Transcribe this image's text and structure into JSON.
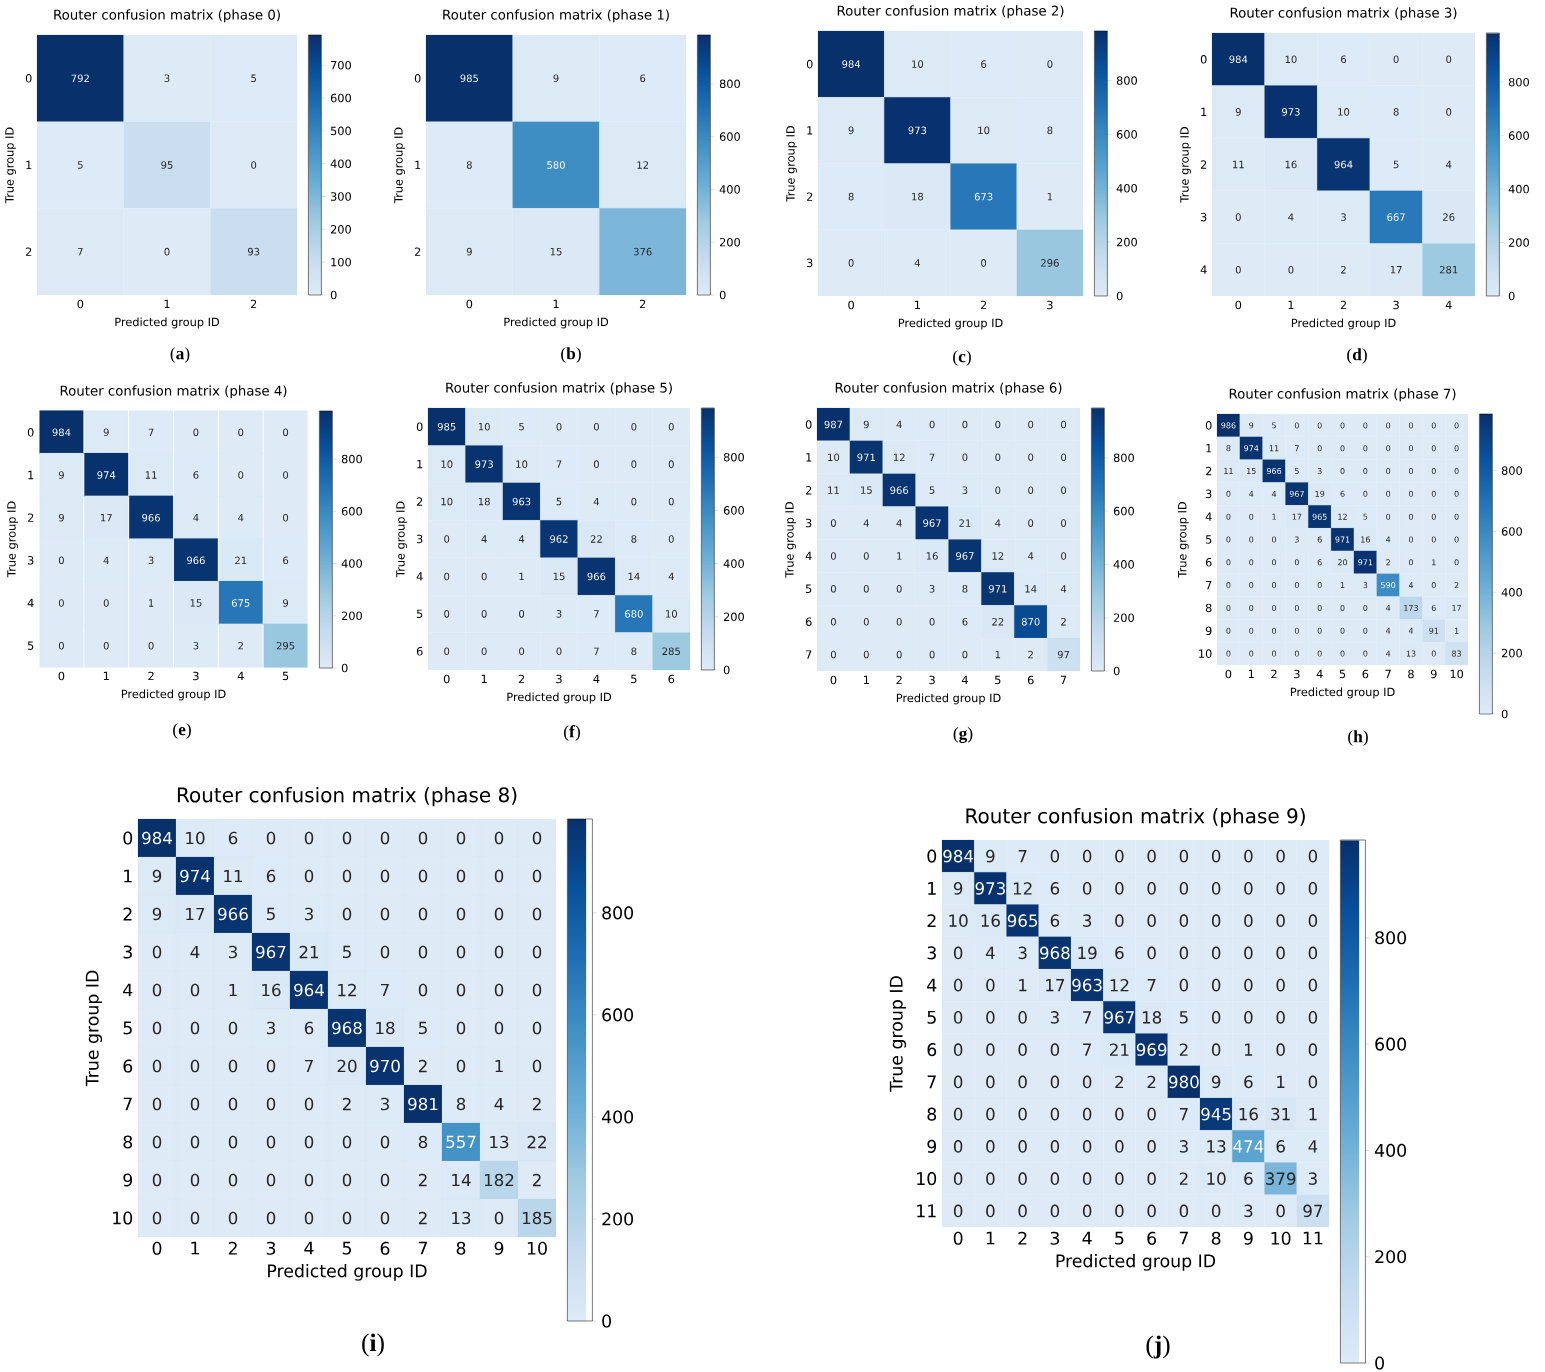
{
  "chart_data": [
    {
      "type": "heatmap",
      "title": "Router confusion matrix (phase 0)",
      "xlabel": "Predicted group ID",
      "ylabel": "True group ID",
      "categories": [
        "0",
        "1",
        "2"
      ],
      "y_categories": [
        "0",
        "1",
        "2"
      ],
      "cells": [
        [
          792,
          3,
          5
        ],
        [
          5,
          95,
          0
        ],
        [
          7,
          0,
          93
        ]
      ],
      "clim": [
        0,
        792
      ],
      "cticks": [
        0,
        100,
        200,
        300,
        400,
        500,
        600,
        700
      ],
      "data_labels": true,
      "annotations": [
        "(**a**)"
      ]
    },
    {
      "type": "heatmap",
      "title": "Router confusion matrix (phase 1)",
      "xlabel": "Predicted group ID",
      "ylabel": "True group ID",
      "categories": [
        "0",
        "1",
        "2"
      ],
      "y_categories": [
        "0",
        "1",
        "2"
      ],
      "cells": [
        [
          985,
          9,
          6
        ],
        [
          8,
          580,
          12
        ],
        [
          9,
          15,
          376
        ]
      ],
      "clim": [
        0,
        985
      ],
      "cticks": [
        0,
        200,
        400,
        600,
        800
      ],
      "data_labels": true,
      "annotations": [
        "(**b**)"
      ]
    },
    {
      "type": "heatmap",
      "title": "Router confusion matrix (phase 2)",
      "xlabel": "Predicted group ID",
      "ylabel": "True group ID",
      "categories": [
        "0",
        "1",
        "2",
        "3"
      ],
      "y_categories": [
        "0",
        "1",
        "2",
        "3"
      ],
      "cells": [
        [
          984,
          10,
          6,
          0
        ],
        [
          9,
          973,
          10,
          8
        ],
        [
          8,
          18,
          673,
          1
        ],
        [
          0,
          4,
          0,
          296
        ]
      ],
      "clim": [
        0,
        984
      ],
      "cticks": [
        0,
        200,
        400,
        600,
        800
      ],
      "data_labels": true,
      "annotations": [
        "(**c**)"
      ]
    },
    {
      "type": "heatmap",
      "title": "Router confusion matrix (phase 3)",
      "xlabel": "Predicted group ID",
      "ylabel": "True group ID",
      "categories": [
        "0",
        "1",
        "2",
        "3",
        "4"
      ],
      "y_categories": [
        "0",
        "1",
        "2",
        "3",
        "4"
      ],
      "cells": [
        [
          984,
          10,
          6,
          0,
          0
        ],
        [
          9,
          973,
          10,
          8,
          0
        ],
        [
          11,
          16,
          964,
          5,
          4
        ],
        [
          0,
          4,
          3,
          667,
          26
        ],
        [
          0,
          0,
          2,
          17,
          281
        ]
      ],
      "clim": [
        0,
        984
      ],
      "cticks": [
        0,
        200,
        400,
        600,
        800
      ],
      "data_labels": true,
      "annotations": [
        "(**d**)"
      ]
    },
    {
      "type": "heatmap",
      "title": "Router confusion matrix (phase 4)",
      "xlabel": "Predicted group ID",
      "ylabel": "True group ID",
      "categories": [
        "0",
        "1",
        "2",
        "3",
        "4",
        "5"
      ],
      "y_categories": [
        "0",
        "1",
        "2",
        "3",
        "4",
        "5"
      ],
      "cells": [
        [
          984,
          9,
          7,
          0,
          0,
          0
        ],
        [
          9,
          974,
          11,
          6,
          0,
          0
        ],
        [
          9,
          17,
          966,
          4,
          4,
          0
        ],
        [
          0,
          4,
          3,
          966,
          21,
          6
        ],
        [
          0,
          0,
          1,
          15,
          675,
          9
        ],
        [
          0,
          0,
          0,
          3,
          2,
          295
        ]
      ],
      "clim": [
        0,
        984
      ],
      "cticks": [
        0,
        200,
        400,
        600,
        800
      ],
      "data_labels": true,
      "annotations": [
        "(**e**)"
      ]
    },
    {
      "type": "heatmap",
      "title": "Router confusion matrix (phase 5)",
      "xlabel": "Predicted group ID",
      "ylabel": "True group ID",
      "categories": [
        "0",
        "1",
        "2",
        "3",
        "4",
        "5",
        "6"
      ],
      "y_categories": [
        "0",
        "1",
        "2",
        "3",
        "4",
        "5",
        "6"
      ],
      "cells": [
        [
          985,
          10,
          5,
          0,
          0,
          0,
          0
        ],
        [
          10,
          973,
          10,
          7,
          0,
          0,
          0
        ],
        [
          10,
          18,
          963,
          5,
          4,
          0,
          0
        ],
        [
          0,
          4,
          4,
          962,
          22,
          8,
          0
        ],
        [
          0,
          0,
          1,
          15,
          966,
          14,
          4
        ],
        [
          0,
          0,
          0,
          3,
          7,
          680,
          10
        ],
        [
          0,
          0,
          0,
          0,
          7,
          8,
          285
        ]
      ],
      "clim": [
        0,
        985
      ],
      "cticks": [
        0,
        200,
        400,
        600,
        800
      ],
      "data_labels": true,
      "annotations": [
        "(**f**)"
      ]
    },
    {
      "type": "heatmap",
      "title": "Router confusion matrix (phase 6)",
      "xlabel": "Predicted group ID",
      "ylabel": "True group ID",
      "categories": [
        "0",
        "1",
        "2",
        "3",
        "4",
        "5",
        "6",
        "7"
      ],
      "y_categories": [
        "0",
        "1",
        "2",
        "3",
        "4",
        "5",
        "6",
        "7"
      ],
      "cells": [
        [
          987,
          9,
          4,
          0,
          0,
          0,
          0,
          0
        ],
        [
          10,
          971,
          12,
          7,
          0,
          0,
          0,
          0
        ],
        [
          11,
          15,
          966,
          5,
          3,
          0,
          0,
          0
        ],
        [
          0,
          4,
          4,
          967,
          21,
          4,
          0,
          0
        ],
        [
          0,
          0,
          1,
          16,
          967,
          12,
          4,
          0
        ],
        [
          0,
          0,
          0,
          3,
          8,
          971,
          14,
          4
        ],
        [
          0,
          0,
          0,
          0,
          6,
          22,
          870,
          2
        ],
        [
          0,
          0,
          0,
          0,
          0,
          1,
          2,
          97
        ]
      ],
      "clim": [
        0,
        987
      ],
      "cticks": [
        0,
        200,
        400,
        600,
        800
      ],
      "data_labels": true,
      "annotations": [
        "(**g**)"
      ]
    },
    {
      "type": "heatmap",
      "title": "Router confusion matrix (phase 7)",
      "xlabel": "Predicted group ID",
      "ylabel": "True group ID",
      "categories": [
        "0",
        "1",
        "2",
        "3",
        "4",
        "5",
        "6",
        "7",
        "8",
        "9",
        "10"
      ],
      "y_categories": [
        "0",
        "1",
        "2",
        "3",
        "4",
        "5",
        "6",
        "7",
        "8",
        "9",
        "10"
      ],
      "cells": [
        [
          986,
          9,
          5,
          0,
          0,
          0,
          0,
          0,
          0,
          0,
          0
        ],
        [
          8,
          974,
          11,
          7,
          0,
          0,
          0,
          0,
          0,
          0,
          0
        ],
        [
          11,
          15,
          966,
          5,
          3,
          0,
          0,
          0,
          0,
          0,
          0
        ],
        [
          0,
          4,
          4,
          967,
          19,
          6,
          0,
          0,
          0,
          0,
          0
        ],
        [
          0,
          0,
          1,
          17,
          965,
          12,
          5,
          0,
          0,
          0,
          0
        ],
        [
          0,
          0,
          0,
          3,
          6,
          971,
          16,
          4,
          0,
          0,
          0
        ],
        [
          0,
          0,
          0,
          0,
          6,
          20,
          971,
          2,
          0,
          1,
          0
        ],
        [
          0,
          0,
          0,
          0,
          0,
          1,
          3,
          590,
          4,
          0,
          2
        ],
        [
          0,
          0,
          0,
          0,
          0,
          0,
          0,
          4,
          173,
          6,
          17
        ],
        [
          0,
          0,
          0,
          0,
          0,
          0,
          0,
          4,
          4,
          91,
          1
        ],
        [
          0,
          0,
          0,
          0,
          0,
          0,
          0,
          4,
          13,
          0,
          83
        ]
      ],
      "clim": [
        0,
        986
      ],
      "cticks": [
        0,
        200,
        400,
        600,
        800
      ],
      "data_labels": true,
      "annotations": [
        "(**h**)"
      ]
    },
    {
      "type": "heatmap",
      "title": "Router confusion matrix (phase 8)",
      "xlabel": "Predicted group ID",
      "ylabel": "True group ID",
      "categories": [
        "0",
        "1",
        "2",
        "3",
        "4",
        "5",
        "6",
        "7",
        "8",
        "9",
        "10"
      ],
      "y_categories": [
        "0",
        "1",
        "2",
        "3",
        "4",
        "5",
        "6",
        "7",
        "8",
        "9",
        "10"
      ],
      "cells": [
        [
          984,
          10,
          6,
          0,
          0,
          0,
          0,
          0,
          0,
          0,
          0
        ],
        [
          9,
          974,
          11,
          6,
          0,
          0,
          0,
          0,
          0,
          0,
          0
        ],
        [
          9,
          17,
          966,
          5,
          3,
          0,
          0,
          0,
          0,
          0,
          0
        ],
        [
          0,
          4,
          3,
          967,
          21,
          5,
          0,
          0,
          0,
          0,
          0
        ],
        [
          0,
          0,
          1,
          16,
          964,
          12,
          7,
          0,
          0,
          0,
          0
        ],
        [
          0,
          0,
          0,
          3,
          6,
          968,
          18,
          5,
          0,
          0,
          0
        ],
        [
          0,
          0,
          0,
          0,
          7,
          20,
          970,
          2,
          0,
          1,
          0
        ],
        [
          0,
          0,
          0,
          0,
          0,
          2,
          3,
          981,
          8,
          4,
          2
        ],
        [
          0,
          0,
          0,
          0,
          0,
          0,
          0,
          8,
          557,
          13,
          22
        ],
        [
          0,
          0,
          0,
          0,
          0,
          0,
          0,
          2,
          14,
          182,
          2
        ],
        [
          0,
          0,
          0,
          0,
          0,
          0,
          0,
          2,
          13,
          0,
          185
        ]
      ],
      "clim": [
        0,
        984
      ],
      "cticks": [
        0,
        200,
        400,
        600,
        800
      ],
      "data_labels": true,
      "annotations": [
        "(**i**)"
      ]
    },
    {
      "type": "heatmap",
      "title": "Router confusion matrix (phase 9)",
      "xlabel": "Predicted group ID",
      "ylabel": "True group ID",
      "categories": [
        "0",
        "1",
        "2",
        "3",
        "4",
        "5",
        "6",
        "7",
        "8",
        "9",
        "10",
        "11"
      ],
      "y_categories": [
        "0",
        "1",
        "2",
        "3",
        "4",
        "5",
        "6",
        "7",
        "8",
        "9",
        "10",
        "11"
      ],
      "cells": [
        [
          984,
          9,
          7,
          0,
          0,
          0,
          0,
          0,
          0,
          0,
          0,
          0
        ],
        [
          9,
          973,
          12,
          6,
          0,
          0,
          0,
          0,
          0,
          0,
          0,
          0
        ],
        [
          10,
          16,
          965,
          6,
          3,
          0,
          0,
          0,
          0,
          0,
          0,
          0
        ],
        [
          0,
          4,
          3,
          968,
          19,
          6,
          0,
          0,
          0,
          0,
          0,
          0
        ],
        [
          0,
          0,
          1,
          17,
          963,
          12,
          7,
          0,
          0,
          0,
          0,
          0
        ],
        [
          0,
          0,
          0,
          3,
          7,
          967,
          18,
          5,
          0,
          0,
          0,
          0
        ],
        [
          0,
          0,
          0,
          0,
          7,
          21,
          969,
          2,
          0,
          1,
          0,
          0
        ],
        [
          0,
          0,
          0,
          0,
          0,
          2,
          2,
          980,
          9,
          6,
          1,
          0
        ],
        [
          0,
          0,
          0,
          0,
          0,
          0,
          0,
          7,
          945,
          16,
          31,
          1
        ],
        [
          0,
          0,
          0,
          0,
          0,
          0,
          0,
          3,
          13,
          474,
          6,
          4
        ],
        [
          0,
          0,
          0,
          0,
          0,
          0,
          0,
          2,
          10,
          6,
          379,
          3
        ],
        [
          0,
          0,
          0,
          0,
          0,
          0,
          0,
          0,
          0,
          3,
          0,
          97
        ]
      ],
      "clim": [
        0,
        984
      ],
      "cticks": [
        0,
        200,
        400,
        600,
        800
      ],
      "data_labels": true,
      "annotations": [
        "(**j**)"
      ]
    }
  ]
}
